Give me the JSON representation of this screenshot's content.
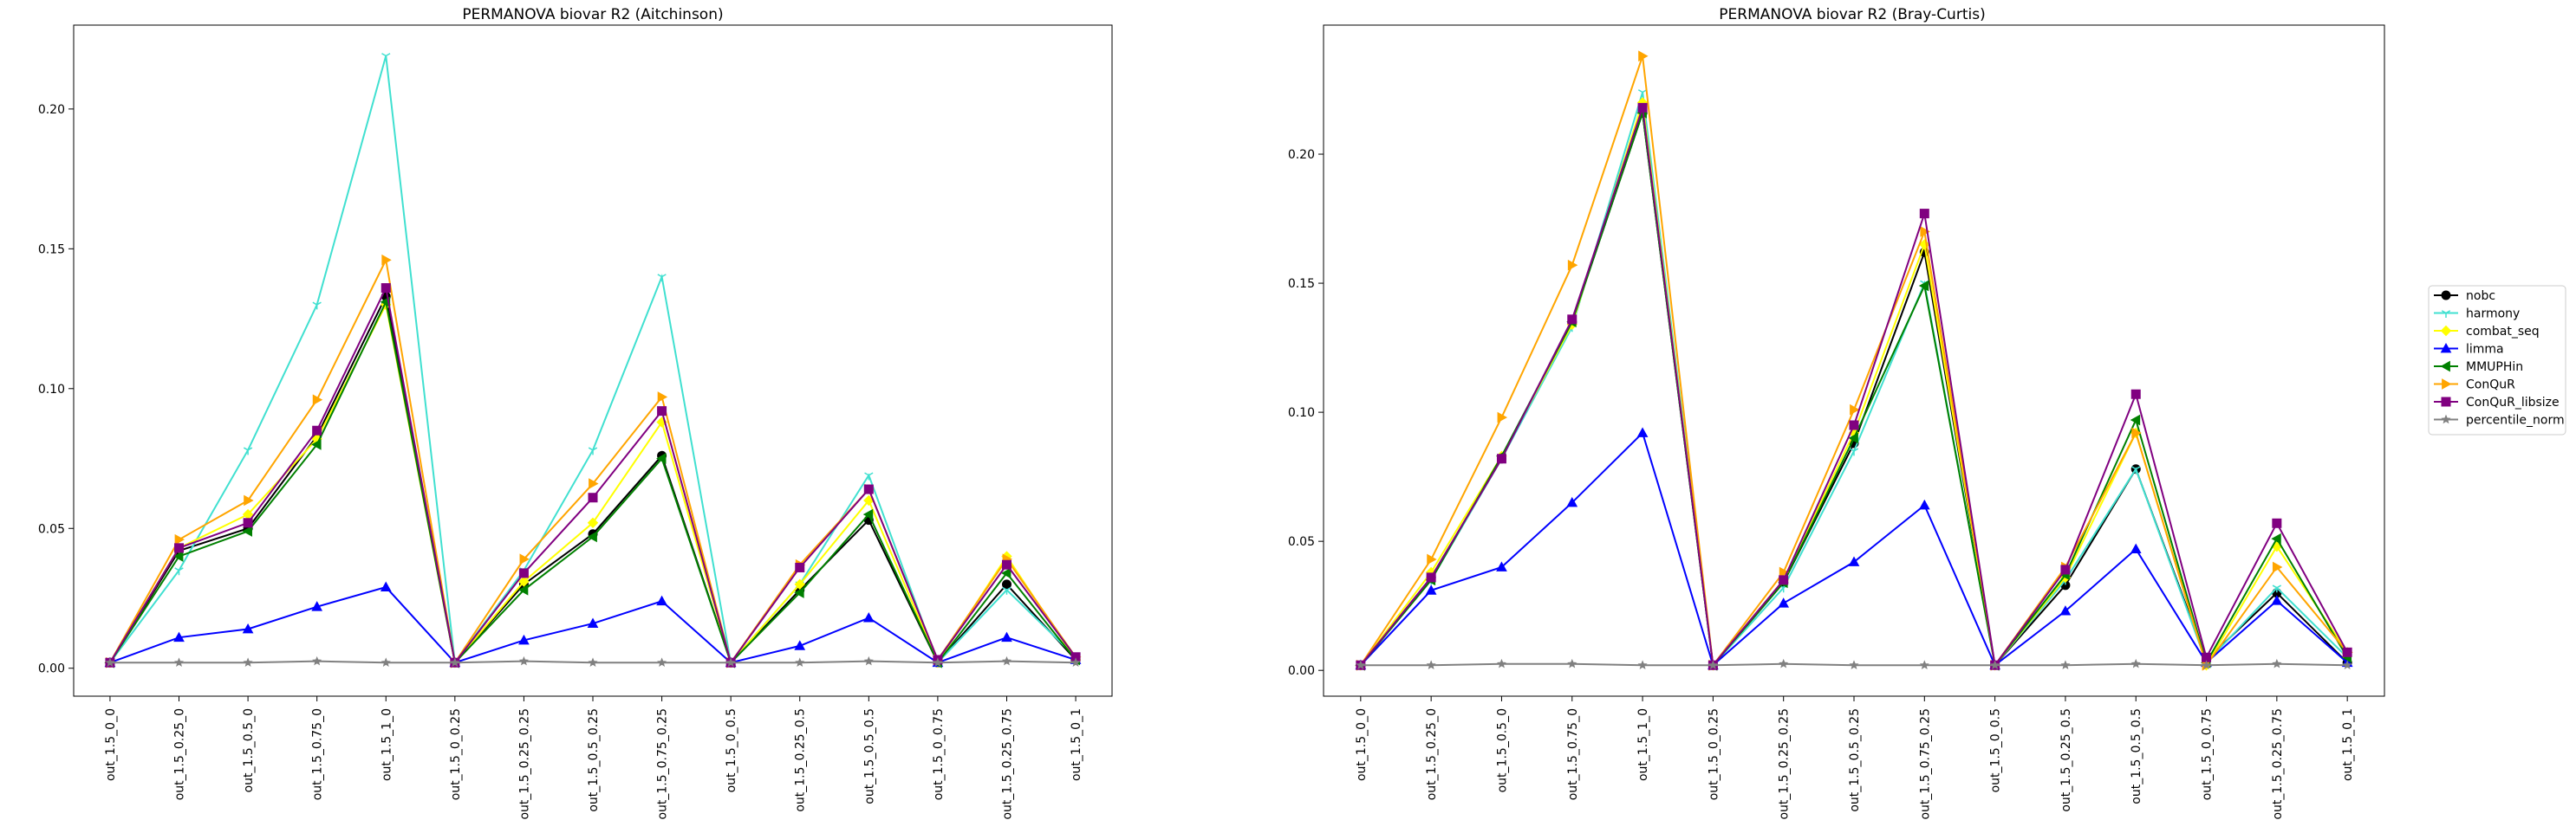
{
  "categories": [
    "out_1.5_0_0",
    "out_1.5_0.25_0",
    "out_1.5_0.5_0",
    "out_1.5_0.75_0",
    "out_1.5_1_0",
    "out_1.5_0_0.25",
    "out_1.5_0.25_0.25",
    "out_1.5_0.5_0.25",
    "out_1.5_0.75_0.25",
    "out_1.5_0_0.5",
    "out_1.5_0.25_0.5",
    "out_1.5_0.5_0.5",
    "out_1.5_0_0.75",
    "out_1.5_0.25_0.75",
    "out_1.5_0_1"
  ],
  "legend_order": [
    "nobc",
    "harmony",
    "combat_seq",
    "limma",
    "MMUPHin",
    "ConQuR",
    "ConQuR_libsize",
    "percentile_norm"
  ],
  "series_style": {
    "nobc": {
      "color": "#000000",
      "marker": "circle"
    },
    "harmony": {
      "color": "#40e0d0",
      "marker": "tri_down"
    },
    "combat_seq": {
      "color": "#ffff00",
      "marker": "diamond"
    },
    "limma": {
      "color": "#0000ff",
      "marker": "triangle_up"
    },
    "MMUPHin": {
      "color": "#008000",
      "marker": "triangle_left"
    },
    "ConQuR": {
      "color": "#ffa500",
      "marker": "triangle_right"
    },
    "ConQuR_libsize": {
      "color": "#800080",
      "marker": "square"
    },
    "percentile_norm": {
      "color": "#808080",
      "marker": "star"
    }
  },
  "chart_data": [
    {
      "type": "line",
      "title": "PERMANOVA biovar R2 (Aitchinson)",
      "xlabel": "",
      "ylabel": "",
      "ylim": [
        -0.01,
        0.23
      ],
      "yticks": [
        0.0,
        0.05,
        0.1,
        0.15,
        0.2
      ],
      "ytick_labels": [
        "0.00",
        "0.05",
        "0.10",
        "0.15",
        "0.20"
      ],
      "grid": false,
      "series": [
        {
          "name": "nobc",
          "values": [
            0.002,
            0.042,
            0.05,
            0.083,
            0.133,
            0.002,
            0.03,
            0.048,
            0.076,
            0.002,
            0.028,
            0.053,
            0.002,
            0.03,
            0.003
          ]
        },
        {
          "name": "harmony",
          "values": [
            0.002,
            0.035,
            0.078,
            0.13,
            0.219,
            0.002,
            0.035,
            0.078,
            0.14,
            0.002,
            0.03,
            0.069,
            0.002,
            0.028,
            0.004
          ]
        },
        {
          "name": "combat_seq",
          "values": [
            0.002,
            0.043,
            0.055,
            0.082,
            0.13,
            0.002,
            0.031,
            0.052,
            0.088,
            0.002,
            0.03,
            0.06,
            0.002,
            0.04,
            0.003
          ]
        },
        {
          "name": "limma",
          "values": [
            0.002,
            0.011,
            0.014,
            0.022,
            0.029,
            0.002,
            0.01,
            0.016,
            0.024,
            0.002,
            0.008,
            0.018,
            0.002,
            0.011,
            0.003
          ]
        },
        {
          "name": "MMUPHin",
          "values": [
            0.002,
            0.04,
            0.049,
            0.08,
            0.131,
            0.002,
            0.028,
            0.047,
            0.075,
            0.002,
            0.027,
            0.055,
            0.002,
            0.034,
            0.003
          ]
        },
        {
          "name": "ConQuR",
          "values": [
            0.002,
            0.046,
            0.06,
            0.096,
            0.146,
            0.002,
            0.039,
            0.066,
            0.097,
            0.002,
            0.037,
            0.064,
            0.003,
            0.039,
            0.004
          ]
        },
        {
          "name": "ConQuR_libsize",
          "values": [
            0.002,
            0.043,
            0.052,
            0.085,
            0.136,
            0.002,
            0.034,
            0.061,
            0.092,
            0.002,
            0.036,
            0.064,
            0.003,
            0.037,
            0.004
          ]
        },
        {
          "name": "percentile_norm",
          "values": [
            0.002,
            0.002,
            0.002,
            0.0025,
            0.002,
            0.002,
            0.0025,
            0.002,
            0.002,
            0.002,
            0.002,
            0.0025,
            0.002,
            0.0025,
            0.002
          ]
        }
      ]
    },
    {
      "type": "line",
      "title": "PERMANOVA biovar R2 (Bray-Curtis)",
      "xlabel": "",
      "ylabel": "",
      "ylim": [
        -0.01,
        0.25
      ],
      "yticks": [
        0.0,
        0.05,
        0.1,
        0.15,
        0.2
      ],
      "ytick_labels": [
        "0.00",
        "0.05",
        "0.10",
        "0.15",
        "0.20"
      ],
      "grid": false,
      "series": [
        {
          "name": "nobc",
          "values": [
            0.002,
            0.036,
            0.082,
            0.135,
            0.216,
            0.002,
            0.034,
            0.088,
            0.162,
            0.002,
            0.033,
            0.078,
            0.004,
            0.03,
            0.003
          ]
        },
        {
          "name": "harmony",
          "values": [
            0.002,
            0.035,
            0.082,
            0.133,
            0.224,
            0.002,
            0.032,
            0.085,
            0.15,
            0.002,
            0.035,
            0.078,
            0.003,
            0.032,
            0.005
          ]
        },
        {
          "name": "combat_seq",
          "values": [
            0.002,
            0.038,
            0.083,
            0.134,
            0.22,
            0.002,
            0.035,
            0.092,
            0.165,
            0.002,
            0.036,
            0.092,
            0.002,
            0.048,
            0.007
          ]
        },
        {
          "name": "limma",
          "values": [
            0.002,
            0.031,
            0.04,
            0.065,
            0.092,
            0.002,
            0.026,
            0.042,
            0.064,
            0.002,
            0.023,
            0.047,
            0.003,
            0.027,
            0.003
          ]
        },
        {
          "name": "MMUPHin",
          "values": [
            0.002,
            0.035,
            0.083,
            0.135,
            0.216,
            0.002,
            0.034,
            0.09,
            0.149,
            0.002,
            0.037,
            0.097,
            0.003,
            0.051,
            0.005
          ]
        },
        {
          "name": "ConQuR",
          "values": [
            0.002,
            0.043,
            0.098,
            0.157,
            0.238,
            0.002,
            0.038,
            0.101,
            0.17,
            0.002,
            0.04,
            0.092,
            0.002,
            0.04,
            0.007
          ]
        },
        {
          "name": "ConQuR_libsize",
          "values": [
            0.002,
            0.036,
            0.082,
            0.136,
            0.218,
            0.002,
            0.035,
            0.095,
            0.177,
            0.002,
            0.039,
            0.107,
            0.005,
            0.057,
            0.007
          ]
        },
        {
          "name": "percentile_norm",
          "values": [
            0.002,
            0.002,
            0.0025,
            0.0025,
            0.002,
            0.002,
            0.0025,
            0.002,
            0.002,
            0.002,
            0.002,
            0.0025,
            0.002,
            0.0025,
            0.002
          ]
        }
      ]
    }
  ]
}
